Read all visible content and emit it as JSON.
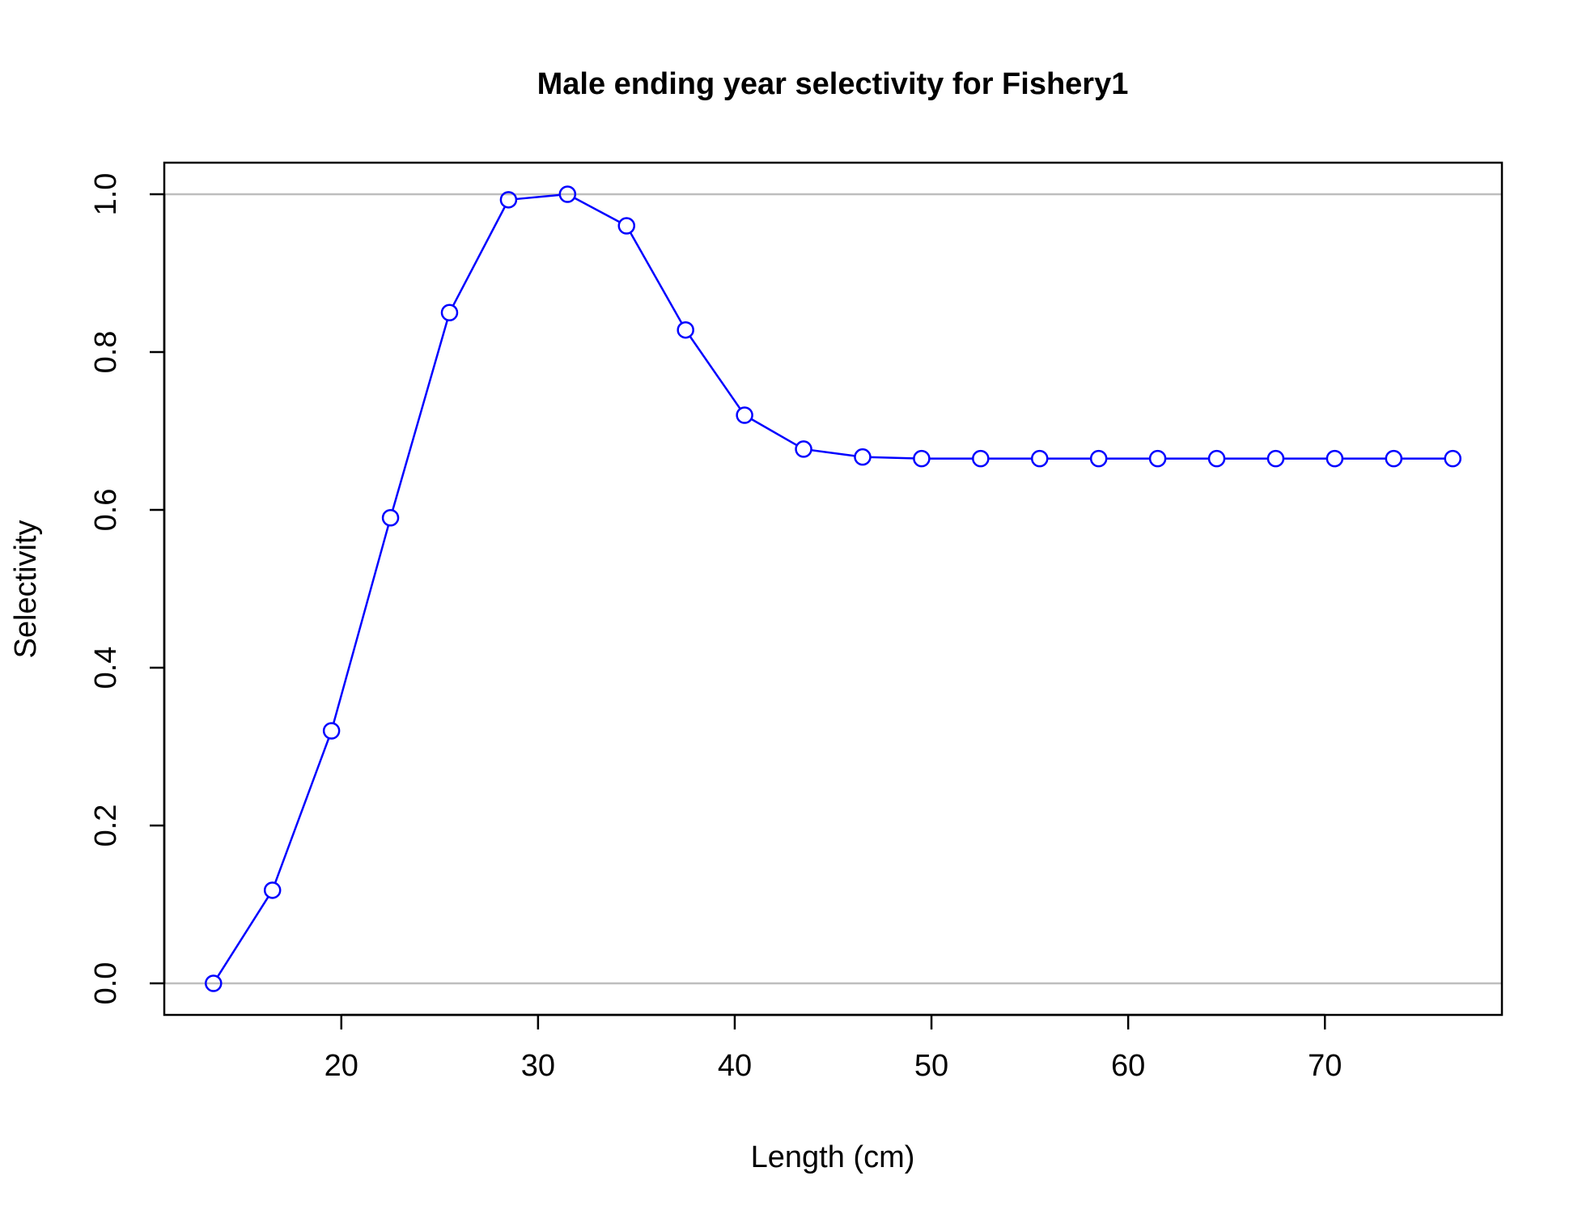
{
  "chart_data": {
    "type": "line",
    "title": "Male ending year selectivity for Fishery1",
    "xlabel": "Length (cm)",
    "ylabel": "Selectivity",
    "xlim": [
      11,
      79
    ],
    "ylim": [
      -0.04,
      1.04
    ],
    "xticks": [
      20,
      30,
      40,
      50,
      60,
      70
    ],
    "yticks": [
      0.0,
      0.2,
      0.4,
      0.6,
      0.8,
      1.0
    ],
    "ytick_labels": [
      "0.0",
      "0.2",
      "0.4",
      "0.6",
      "0.8",
      "1.0"
    ],
    "reference_lines_y": [
      0,
      1
    ],
    "series": [
      {
        "x": [
          13.5,
          16.5,
          19.5,
          22.5,
          25.5,
          28.5,
          31.5,
          34.5,
          37.5,
          40.5,
          43.5,
          46.5,
          49.5,
          52.5,
          55.5,
          58.5,
          61.5,
          64.5,
          67.5,
          70.5,
          73.5,
          76.5
        ],
        "values": [
          0.0,
          0.118,
          0.32,
          0.59,
          0.85,
          0.993,
          1.0,
          0.96,
          0.828,
          0.72,
          0.677,
          0.667,
          0.665,
          0.665,
          0.665,
          0.665,
          0.665,
          0.665,
          0.665,
          0.665,
          0.665,
          0.665
        ],
        "color": "#0000ff",
        "marker": "open-circle"
      }
    ],
    "reference_line_color": "#bebebe",
    "grid": false,
    "legend": "none"
  }
}
